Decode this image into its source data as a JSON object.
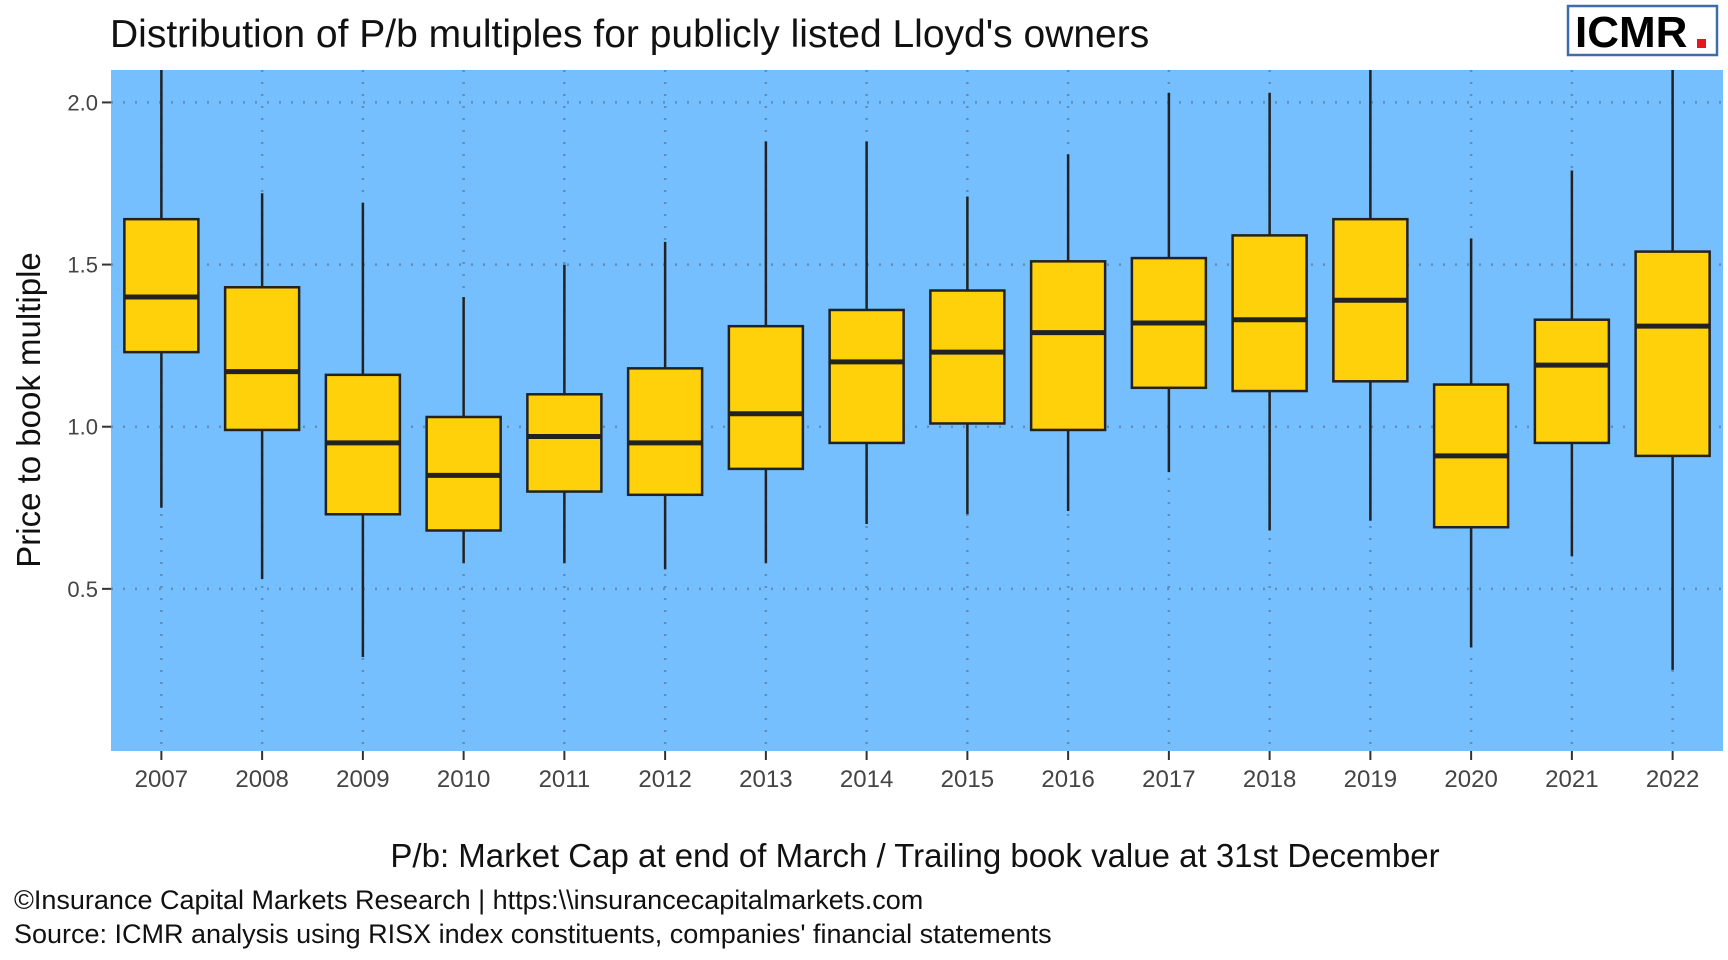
{
  "chart_data": {
    "type": "boxplot",
    "title": "Distribution of P/b multiples for publicly listed Lloyd's owners",
    "xlabel": "P/b: Market Cap at end of March / Trailing book value at 31st December",
    "ylabel": "Price to book multiple",
    "ylim": [
      0,
      2.1
    ],
    "yticks": [
      0.5,
      1.0,
      1.5,
      2.0
    ],
    "ytick_labels": [
      "0.5",
      "1.0",
      "1.5",
      "2.0"
    ],
    "grid": "dotted major gridlines",
    "categories": [
      "2007",
      "2008",
      "2009",
      "2010",
      "2011",
      "2012",
      "2013",
      "2014",
      "2015",
      "2016",
      "2017",
      "2018",
      "2019",
      "2020",
      "2021",
      "2022"
    ],
    "boxes": [
      {
        "low": 0.75,
        "q1": 1.23,
        "median": 1.4,
        "q3": 1.64,
        "high": 2.2
      },
      {
        "low": 0.53,
        "q1": 0.99,
        "median": 1.17,
        "q3": 1.43,
        "high": 1.72
      },
      {
        "low": 0.29,
        "q1": 0.73,
        "median": 0.95,
        "q3": 1.16,
        "high": 1.69
      },
      {
        "low": 0.58,
        "q1": 0.68,
        "median": 0.85,
        "q3": 1.03,
        "high": 1.4
      },
      {
        "low": 0.58,
        "q1": 0.8,
        "median": 0.97,
        "q3": 1.1,
        "high": 1.5
      },
      {
        "low": 0.56,
        "q1": 0.79,
        "median": 0.95,
        "q3": 1.18,
        "high": 1.57
      },
      {
        "low": 0.58,
        "q1": 0.87,
        "median": 1.04,
        "q3": 1.31,
        "high": 1.88
      },
      {
        "low": 0.7,
        "q1": 0.95,
        "median": 1.2,
        "q3": 1.36,
        "high": 1.88
      },
      {
        "low": 0.73,
        "q1": 1.01,
        "median": 1.23,
        "q3": 1.42,
        "high": 1.71
      },
      {
        "low": 0.74,
        "q1": 0.99,
        "median": 1.29,
        "q3": 1.51,
        "high": 1.84
      },
      {
        "low": 0.86,
        "q1": 1.12,
        "median": 1.32,
        "q3": 1.52,
        "high": 2.03
      },
      {
        "low": 0.68,
        "q1": 1.11,
        "median": 1.33,
        "q3": 1.59,
        "high": 2.03
      },
      {
        "low": 0.71,
        "q1": 1.14,
        "median": 1.39,
        "q3": 1.64,
        "high": 2.2
      },
      {
        "low": 0.32,
        "q1": 0.69,
        "median": 0.91,
        "q3": 1.13,
        "high": 1.58
      },
      {
        "low": 0.6,
        "q1": 0.95,
        "median": 1.19,
        "q3": 1.33,
        "high": 1.79
      },
      {
        "low": 0.25,
        "q1": 0.91,
        "median": 1.31,
        "q3": 1.54,
        "high": 2.2
      }
    ],
    "colors": {
      "panel": "#75BFFF",
      "box": "#FFD10A",
      "line": "#222222",
      "grid": "#5F8FB8"
    }
  },
  "logo": {
    "text": "ICMR",
    "dot_color": "#E8141E",
    "border_color": "#3D6EA8"
  },
  "footer": {
    "copyright": "©Insurance Capital Markets Research | https:\\\\insurancecapitalmarkets.com",
    "source": "Source: ICMR analysis using RISX index constituents, companies' financial statements"
  }
}
